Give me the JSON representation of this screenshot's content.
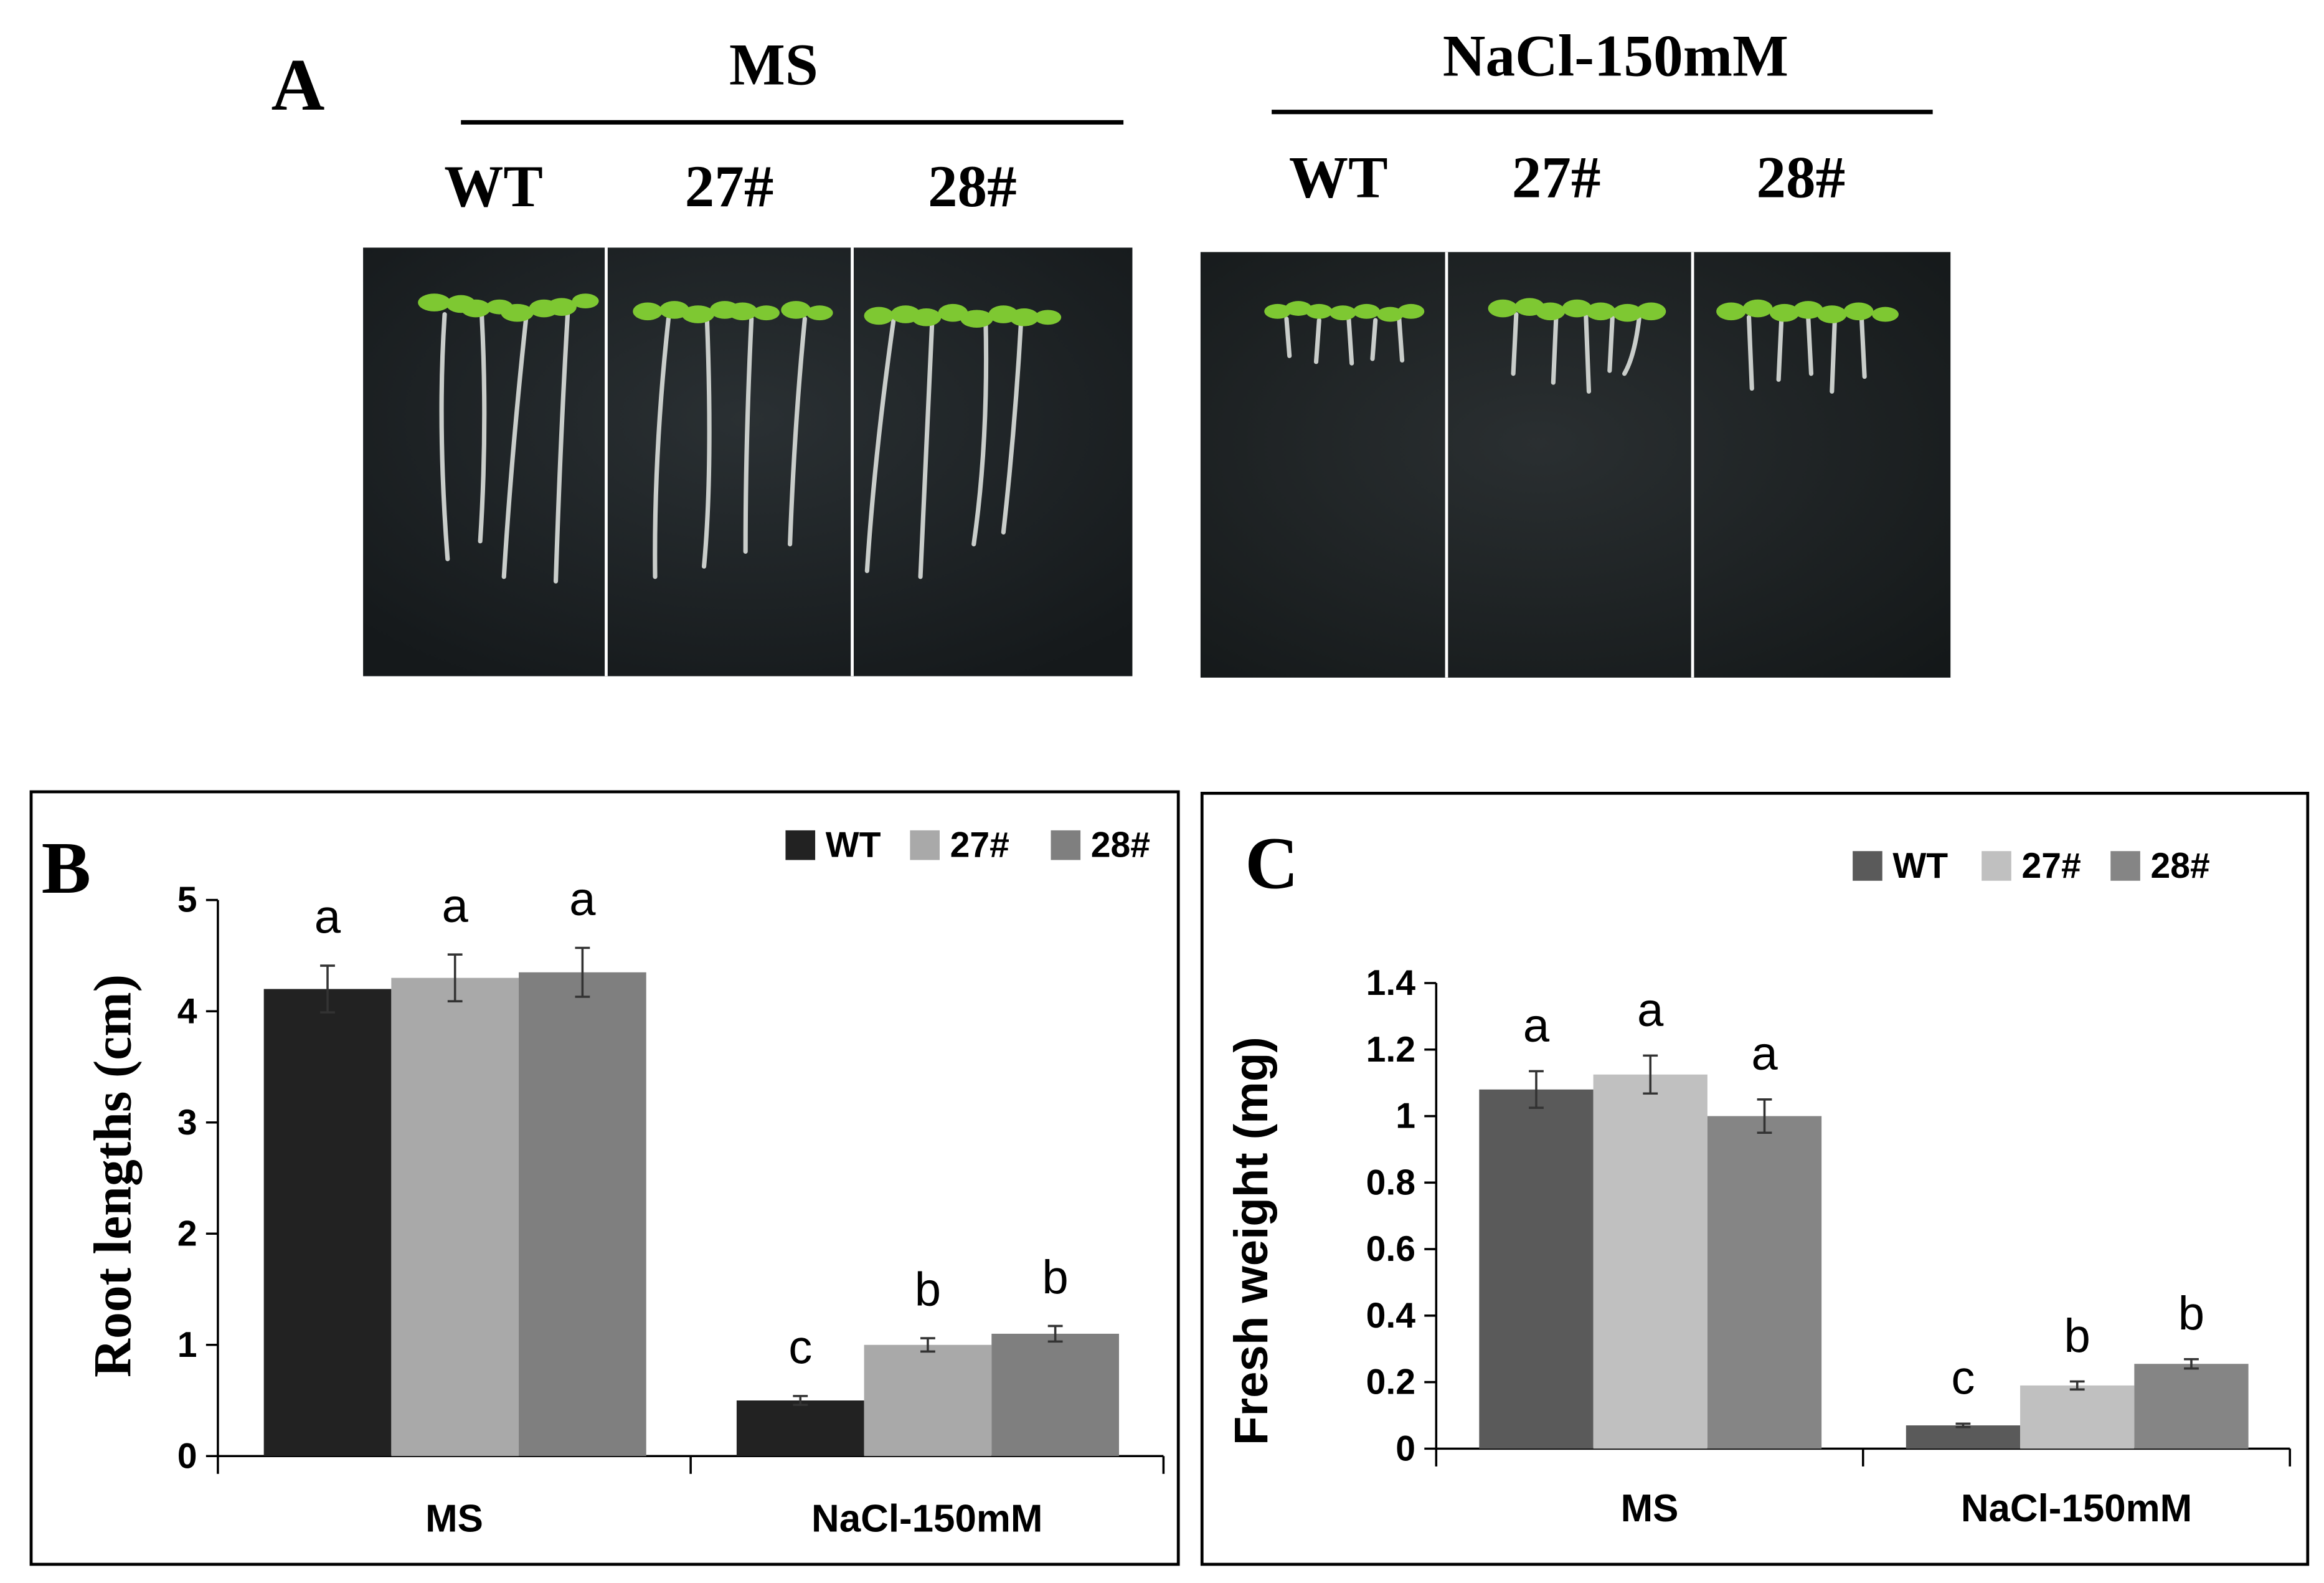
{
  "panel_a": {
    "letter": "A",
    "groups": [
      {
        "title": "MS",
        "lines": [
          "WT",
          "27#",
          "28#"
        ]
      },
      {
        "title": "NaCl-150mM",
        "lines": [
          "WT",
          "27#",
          "28#"
        ]
      }
    ]
  },
  "colors": {
    "plate_bg": "#1c2124",
    "leaf": "#7ec832",
    "root": "#c9cdca",
    "wt_b": "#222222",
    "l27_b": "#a9a9a9",
    "l28_b": "#7f7f7f",
    "wt_c": "#5a5a5a",
    "l27_c": "#c0c0c0",
    "l28_c": "#858585"
  },
  "chart_data": [
    {
      "type": "bar",
      "panel": "B",
      "title": "",
      "xlabel": "",
      "ylabel": "Root lengths (cm)",
      "categories": [
        "MS",
        "NaCl-150mM"
      ],
      "ylim": [
        0,
        5
      ],
      "yticks": [
        "0",
        "1",
        "2",
        "3",
        "4",
        "5"
      ],
      "legend": "top-right",
      "series": [
        {
          "name": "WT",
          "values": [
            4.2,
            0.5
          ],
          "errors": [
            0.21,
            0.04
          ],
          "letters": [
            "a",
            "c"
          ]
        },
        {
          "name": "27#",
          "values": [
            4.3,
            1.0
          ],
          "errors": [
            0.21,
            0.06
          ],
          "letters": [
            "a",
            "b"
          ]
        },
        {
          "name": "28#",
          "values": [
            4.35,
            1.1
          ],
          "errors": [
            0.22,
            0.07
          ],
          "letters": [
            "a",
            "b"
          ]
        }
      ]
    },
    {
      "type": "bar",
      "panel": "C",
      "title": "",
      "xlabel": "",
      "ylabel": "Fresh weight (mg)",
      "categories": [
        "MS",
        "NaCl-150mM"
      ],
      "ylim": [
        0,
        1.4
      ],
      "yticks": [
        "0",
        "0.2",
        "0.4",
        "0.6",
        "0.8",
        "1",
        "1.2",
        "1.4"
      ],
      "legend": "top-right",
      "series": [
        {
          "name": "WT",
          "values": [
            1.08,
            0.07
          ],
          "errors": [
            0.055,
            0.005
          ],
          "letters": [
            "a",
            "c"
          ]
        },
        {
          "name": "27#",
          "values": [
            1.125,
            0.19
          ],
          "errors": [
            0.057,
            0.012
          ],
          "letters": [
            "a",
            "b"
          ]
        },
        {
          "name": "28#",
          "values": [
            1.0,
            0.255
          ],
          "errors": [
            0.05,
            0.014
          ],
          "letters": [
            "a",
            "b"
          ]
        }
      ]
    }
  ]
}
